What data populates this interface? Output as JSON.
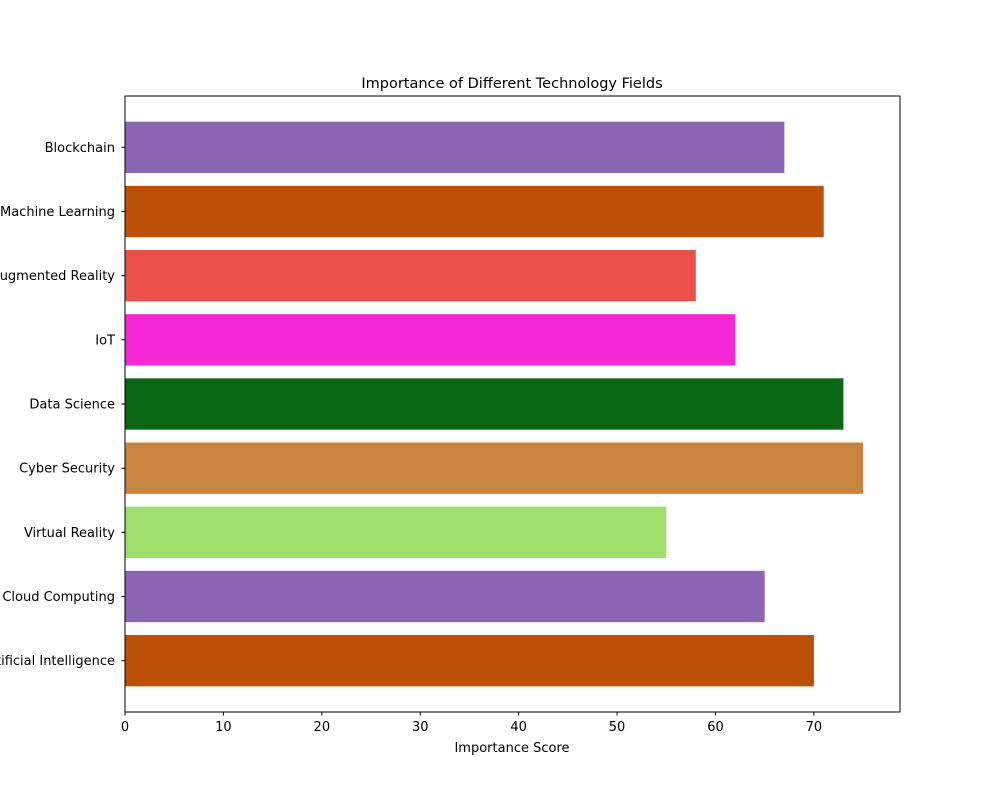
{
  "chart_data": {
    "type": "bar",
    "orientation": "horizontal",
    "title": "Importance of Different Technology Fields",
    "xlabel": "Importance Score",
    "ylabel": "",
    "xlim": [
      0,
      78.75
    ],
    "x_ticks": [
      0,
      10,
      20,
      30,
      40,
      50,
      60,
      70
    ],
    "grid": false,
    "categories": [
      "Artificial Intelligence",
      "Cloud Computing",
      "Virtual Reality",
      "Cyber Security",
      "Data Science",
      "IoT",
      "Augmented Reality",
      "Machine Learning",
      "Blockchain"
    ],
    "values": [
      70,
      65,
      55,
      75,
      73,
      62,
      58,
      71,
      67
    ],
    "colors": [
      "#bb4f06",
      "#8c64b4",
      "#9ddd69",
      "#c8843e",
      "#0a6814",
      "#f527d5",
      "#eb5048",
      "#bb4f06",
      "#8c64b4"
    ]
  }
}
